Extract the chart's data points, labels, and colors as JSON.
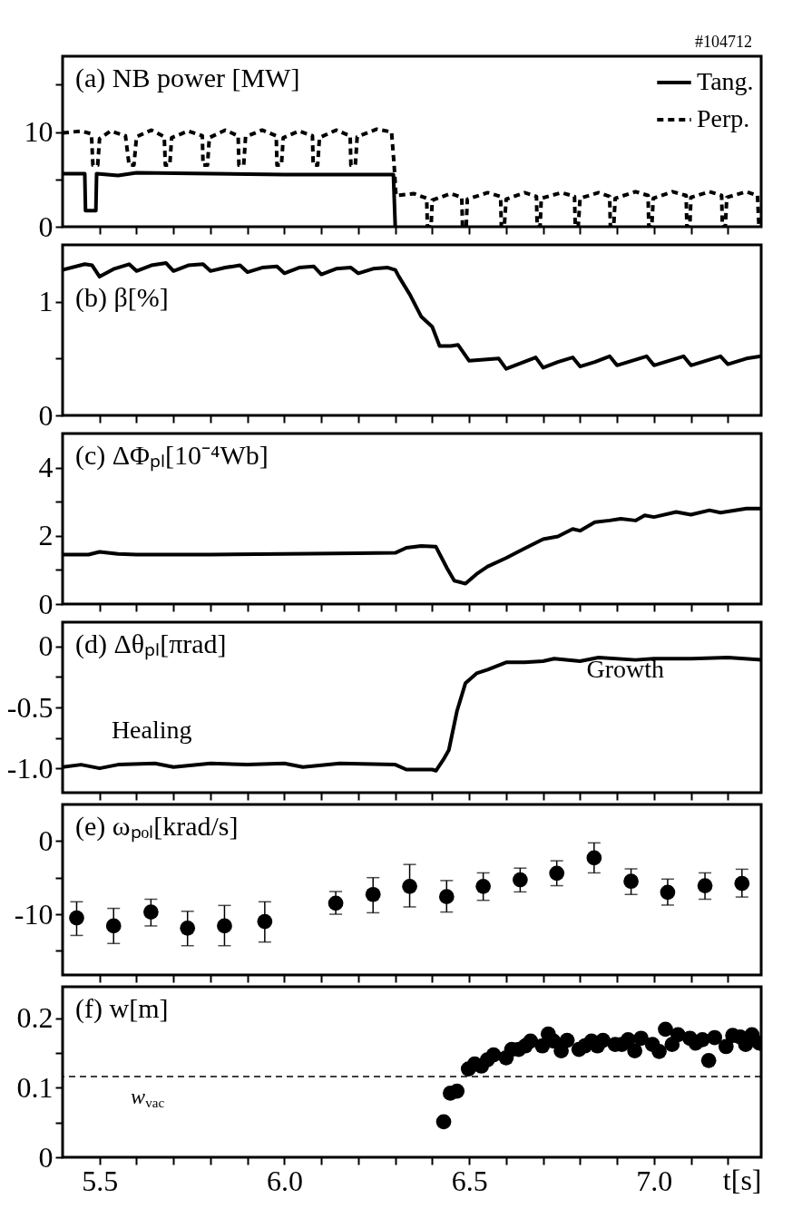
{
  "chart_data": [
    {
      "type": "line",
      "title": "(a) NB power [MW]",
      "annotations": [
        "#104712"
      ],
      "legend": "top right",
      "tick_labels": "y",
      "xlim": [
        5.4,
        7.29
      ],
      "ylim": [
        0,
        18
      ],
      "yticks": [
        0,
        {
          "value": 5,
          "label": null
        },
        10,
        {
          "value": 15,
          "label": null
        }
      ],
      "xticks": [
        {
          "value": 5.5,
          "label": null
        },
        {
          "value": 5.6,
          "label": null
        },
        {
          "value": 5.7,
          "label": null
        },
        {
          "value": 5.8,
          "label": null
        },
        {
          "value": 5.9,
          "label": null
        },
        {
          "value": 6.0,
          "label": null
        },
        {
          "value": 6.1,
          "label": null
        },
        {
          "value": 6.2,
          "label": null
        },
        {
          "value": 6.3,
          "label": null
        },
        {
          "value": 6.4,
          "label": null
        },
        {
          "value": 6.5,
          "label": null
        },
        {
          "value": 6.6,
          "label": null
        },
        {
          "value": 6.7,
          "label": null
        },
        {
          "value": 6.8,
          "label": null
        },
        {
          "value": 6.9,
          "label": null
        },
        {
          "value": 7.0,
          "label": null
        },
        {
          "value": 7.1,
          "label": null
        },
        {
          "value": 7.2,
          "label": null
        }
      ],
      "series": [
        {
          "name": "Tang.",
          "color": "#000000",
          "line_style": "solid",
          "x": [
            5.4,
            5.46,
            5.462,
            5.49,
            5.492,
            5.55,
            5.6,
            6.0,
            6.295,
            6.3
          ],
          "values": [
            5.6,
            5.6,
            1.7,
            1.7,
            5.6,
            5.4,
            5.7,
            5.5,
            5.5,
            0
          ]
        },
        {
          "name": "Perp.",
          "color": "#000000",
          "line_style": "dashed",
          "x": [
            5.4,
            5.45,
            5.478,
            5.482,
            5.495,
            5.5,
            5.53,
            5.57,
            5.58,
            5.593,
            5.6,
            5.64,
            5.675,
            5.678,
            5.69,
            5.695,
            5.74,
            5.778,
            5.78,
            5.792,
            5.797,
            5.84,
            5.875,
            5.877,
            5.89,
            5.895,
            5.94,
            5.978,
            5.98,
            5.992,
            5.997,
            6.04,
            6.076,
            6.078,
            6.09,
            6.095,
            6.14,
            6.178,
            6.18,
            6.192,
            6.197,
            6.25,
            6.29,
            6.297,
            6.302,
            6.35,
            6.385,
            6.387,
            6.397,
            6.4,
            6.45,
            6.48,
            6.482,
            6.492,
            6.495,
            6.55,
            6.585,
            6.587,
            6.595,
            6.6,
            6.65,
            6.682,
            6.684,
            6.692,
            6.695,
            6.75,
            6.785,
            6.787,
            6.795,
            6.8,
            6.85,
            6.88,
            6.882,
            6.891,
            6.895,
            6.95,
            6.984,
            6.986,
            6.994,
            6.998,
            7.05,
            7.087,
            7.089,
            7.097,
            7.1,
            7.15,
            7.183,
            7.185,
            7.193,
            7.197,
            7.25,
            7.28,
            7.284,
            7.29
          ],
          "values": [
            9.9,
            10.1,
            9.8,
            6.5,
            6.5,
            9.3,
            10.1,
            9.6,
            6.5,
            6.5,
            9.5,
            10.2,
            9.5,
            6.5,
            6.5,
            9.4,
            10.1,
            9.6,
            6.5,
            6.5,
            9.4,
            10.2,
            9.6,
            6.5,
            6.5,
            9.5,
            10.2,
            9.6,
            6.5,
            6.5,
            9.4,
            10.1,
            9.6,
            6.5,
            6.5,
            9.4,
            10.2,
            9.6,
            6.5,
            6.5,
            9.5,
            10.3,
            10.0,
            6.5,
            3.3,
            3.5,
            3.0,
            0,
            0,
            2.8,
            3.5,
            3.1,
            0,
            0,
            2.9,
            3.6,
            3.2,
            0,
            0,
            2.9,
            3.6,
            3.2,
            0,
            0,
            3.0,
            3.6,
            3.2,
            0,
            0,
            3.0,
            3.6,
            3.2,
            0,
            0,
            3.0,
            3.7,
            3.3,
            0,
            0,
            3.0,
            3.7,
            3.3,
            0,
            0,
            3.1,
            3.7,
            3.3,
            0,
            0,
            3.1,
            3.7,
            3.3,
            0,
            0
          ]
        }
      ]
    },
    {
      "type": "line",
      "title": "(b) β[%]",
      "tick_labels": "y",
      "xlim": [
        5.4,
        7.29
      ],
      "ylim": [
        0,
        1.5
      ],
      "yticks": [
        0,
        {
          "value": 0.5,
          "label": null
        },
        1
      ],
      "xticks": [
        {
          "value": 5.5,
          "label": null
        },
        {
          "value": 5.6,
          "label": null
        },
        {
          "value": 5.7,
          "label": null
        },
        {
          "value": 5.8,
          "label": null
        },
        {
          "value": 5.9,
          "label": null
        },
        {
          "value": 6.0,
          "label": null
        },
        {
          "value": 6.1,
          "label": null
        },
        {
          "value": 6.2,
          "label": null
        },
        {
          "value": 6.3,
          "label": null
        },
        {
          "value": 6.4,
          "label": null
        },
        {
          "value": 6.5,
          "label": null
        },
        {
          "value": 6.6,
          "label": null
        },
        {
          "value": 6.7,
          "label": null
        },
        {
          "value": 6.8,
          "label": null
        },
        {
          "value": 6.9,
          "label": null
        },
        {
          "value": 7.0,
          "label": null
        },
        {
          "value": 7.1,
          "label": null
        },
        {
          "value": 7.2,
          "label": null
        }
      ],
      "series": [
        {
          "color": "#000000",
          "x": [
            5.4,
            5.46,
            5.48,
            5.5,
            5.54,
            5.58,
            5.6,
            5.64,
            5.68,
            5.7,
            5.74,
            5.78,
            5.8,
            5.84,
            5.88,
            5.9,
            5.94,
            5.98,
            6.0,
            6.04,
            6.08,
            6.1,
            6.14,
            6.18,
            6.2,
            6.24,
            6.28,
            6.3,
            6.31,
            6.34,
            6.37,
            6.4,
            6.42,
            6.45,
            6.47,
            6.5,
            6.54,
            6.58,
            6.6,
            6.64,
            6.68,
            6.7,
            6.74,
            6.78,
            6.8,
            6.84,
            6.88,
            6.9,
            6.94,
            6.98,
            7.0,
            7.04,
            7.08,
            7.1,
            7.14,
            7.18,
            7.2,
            7.25,
            7.29
          ],
          "values": [
            1.28,
            1.33,
            1.32,
            1.22,
            1.29,
            1.33,
            1.27,
            1.32,
            1.34,
            1.27,
            1.32,
            1.33,
            1.27,
            1.3,
            1.32,
            1.26,
            1.3,
            1.31,
            1.25,
            1.3,
            1.31,
            1.24,
            1.29,
            1.3,
            1.25,
            1.29,
            1.3,
            1.28,
            1.22,
            1.06,
            0.87,
            0.78,
            0.61,
            0.61,
            0.62,
            0.48,
            0.49,
            0.5,
            0.41,
            0.46,
            0.51,
            0.42,
            0.47,
            0.51,
            0.43,
            0.47,
            0.52,
            0.44,
            0.48,
            0.52,
            0.44,
            0.48,
            0.52,
            0.44,
            0.48,
            0.52,
            0.45,
            0.5,
            0.52
          ]
        }
      ]
    },
    {
      "type": "line",
      "title": "(c) ΔΦₚₗ[10⁻⁴Wb]",
      "tick_labels": "y",
      "xlim": [
        5.4,
        7.29
      ],
      "ylim": [
        0,
        5
      ],
      "yticks": [
        0,
        {
          "value": 1,
          "label": null
        },
        2,
        {
          "value": 3,
          "label": null
        },
        4
      ],
      "xticks": [
        {
          "value": 5.5,
          "label": null
        },
        {
          "value": 5.6,
          "label": null
        },
        {
          "value": 5.7,
          "label": null
        },
        {
          "value": 5.8,
          "label": null
        },
        {
          "value": 5.9,
          "label": null
        },
        {
          "value": 6.0,
          "label": null
        },
        {
          "value": 6.1,
          "label": null
        },
        {
          "value": 6.2,
          "label": null
        },
        {
          "value": 6.3,
          "label": null
        },
        {
          "value": 6.4,
          "label": null
        },
        {
          "value": 6.5,
          "label": null
        },
        {
          "value": 6.6,
          "label": null
        },
        {
          "value": 6.7,
          "label": null
        },
        {
          "value": 6.8,
          "label": null
        },
        {
          "value": 6.9,
          "label": null
        },
        {
          "value": 7.0,
          "label": null
        },
        {
          "value": 7.1,
          "label": null
        },
        {
          "value": 7.2,
          "label": null
        }
      ],
      "series": [
        {
          "color": "#000000",
          "x": [
            5.4,
            5.47,
            5.5,
            5.55,
            5.6,
            5.8,
            6.0,
            6.2,
            6.3,
            6.33,
            6.37,
            6.41,
            6.44,
            6.46,
            6.49,
            6.52,
            6.55,
            6.6,
            6.645,
            6.7,
            6.74,
            6.78,
            6.8,
            6.84,
            6.88,
            6.91,
            6.95,
            6.975,
            7.0,
            7.06,
            7.1,
            7.15,
            7.18,
            7.25,
            7.29
          ],
          "values": [
            1.45,
            1.45,
            1.53,
            1.47,
            1.45,
            1.45,
            1.47,
            1.49,
            1.5,
            1.65,
            1.7,
            1.68,
            1.05,
            0.68,
            0.6,
            0.88,
            1.1,
            1.35,
            1.6,
            1.9,
            1.98,
            2.2,
            2.15,
            2.4,
            2.45,
            2.5,
            2.45,
            2.6,
            2.55,
            2.7,
            2.62,
            2.75,
            2.68,
            2.8,
            2.8
          ]
        }
      ]
    },
    {
      "type": "line",
      "title": "(d) Δθₚₗ[πrad]",
      "tick_labels": "y",
      "annotations": [
        "Healing",
        "Growth"
      ],
      "xlim": [
        5.4,
        7.29
      ],
      "ylim": [
        -1.2,
        0.2
      ],
      "yticks": [
        {
          "value": 0,
          "label": "0"
        },
        {
          "value": -0.25,
          "label": null
        },
        {
          "value": -0.5,
          "label": "-0.5"
        },
        {
          "value": -0.75,
          "label": null
        },
        {
          "value": -1.0,
          "label": "-1.0"
        }
      ],
      "xticks": [
        {
          "value": 5.5,
          "label": null
        },
        {
          "value": 5.6,
          "label": null
        },
        {
          "value": 5.7,
          "label": null
        },
        {
          "value": 5.8,
          "label": null
        },
        {
          "value": 5.9,
          "label": null
        },
        {
          "value": 6.0,
          "label": null
        },
        {
          "value": 6.1,
          "label": null
        },
        {
          "value": 6.2,
          "label": null
        },
        {
          "value": 6.3,
          "label": null
        },
        {
          "value": 6.4,
          "label": null
        },
        {
          "value": 6.5,
          "label": null
        },
        {
          "value": 6.6,
          "label": null
        },
        {
          "value": 6.7,
          "label": null
        },
        {
          "value": 6.8,
          "label": null
        },
        {
          "value": 6.9,
          "label": null
        },
        {
          "value": 7.0,
          "label": null
        },
        {
          "value": 7.1,
          "label": null
        },
        {
          "value": 7.2,
          "label": null
        }
      ],
      "series": [
        {
          "color": "#000000",
          "x": [
            5.4,
            5.45,
            5.5,
            5.55,
            5.65,
            5.7,
            5.8,
            5.9,
            6.0,
            6.05,
            6.15,
            6.3,
            6.33,
            6.4,
            6.41,
            6.43,
            6.445,
            6.467,
            6.49,
            6.52,
            6.55,
            6.6,
            6.65,
            6.7,
            6.73,
            6.8,
            6.85,
            6.95,
            7.0,
            7.1,
            7.2,
            7.29
          ],
          "values": [
            -0.99,
            -0.97,
            -1.0,
            -0.97,
            -0.96,
            -0.99,
            -0.96,
            -0.97,
            -0.96,
            -0.99,
            -0.96,
            -0.97,
            -1.01,
            -1.01,
            -1.02,
            -0.93,
            -0.85,
            -0.53,
            -0.3,
            -0.22,
            -0.19,
            -0.13,
            -0.13,
            -0.12,
            -0.1,
            -0.12,
            -0.09,
            -0.11,
            -0.1,
            -0.1,
            -0.09,
            -0.11
          ]
        }
      ]
    },
    {
      "type": "scatter",
      "title": "(e) ωₚₒₗ[krad/s]",
      "tick_labels": "y",
      "marker": "circle",
      "xlim": [
        5.4,
        7.29
      ],
      "ylim": [
        -18.3,
        5
      ],
      "yticks": [
        0,
        {
          "value": -5,
          "label": null
        },
        -10,
        {
          "value": -15,
          "label": null
        }
      ],
      "xticks": [
        {
          "value": 5.5,
          "label": null
        },
        {
          "value": 5.6,
          "label": null
        },
        {
          "value": 5.7,
          "label": null
        },
        {
          "value": 5.8,
          "label": null
        },
        {
          "value": 5.9,
          "label": null
        },
        {
          "value": 6.0,
          "label": null
        },
        {
          "value": 6.1,
          "label": null
        },
        {
          "value": 6.2,
          "label": null
        },
        {
          "value": 6.3,
          "label": null
        },
        {
          "value": 6.4,
          "label": null
        },
        {
          "value": 6.5,
          "label": null
        },
        {
          "value": 6.6,
          "label": null
        },
        {
          "value": 6.7,
          "label": null
        },
        {
          "value": 6.8,
          "label": null
        },
        {
          "value": 6.9,
          "label": null
        },
        {
          "value": 7.0,
          "label": null
        },
        {
          "value": 7.1,
          "label": null
        },
        {
          "value": 7.2,
          "label": null
        }
      ],
      "series": [
        {
          "color": "#000000",
          "x": [
            5.438,
            5.538,
            5.639,
            5.738,
            5.838,
            5.947,
            6.139,
            6.24,
            6.339,
            6.439,
            6.538,
            6.638,
            6.737,
            6.838,
            6.938,
            7.037,
            7.138,
            7.238
          ],
          "values": [
            -10.5,
            -11.6,
            -9.7,
            -11.9,
            -11.6,
            -11.0,
            -8.5,
            -7.3,
            -6.2,
            -7.6,
            -6.2,
            -5.3,
            -4.4,
            -2.3,
            -5.5,
            -7.0,
            -6.1,
            -5.8
          ],
          "errors": [
            [
              -12.9,
              -8.3
            ],
            [
              -14.0,
              -9.2
            ],
            [
              -11.6,
              -7.95
            ],
            [
              -14.3,
              -9.6
            ],
            [
              -14.3,
              -8.8
            ],
            [
              -13.8,
              -8.3
            ],
            [
              -10.0,
              -6.9
            ],
            [
              -9.8,
              -5.0
            ],
            [
              -9.0,
              -3.2
            ],
            [
              -9.7,
              -5.4
            ],
            [
              -8.1,
              -4.35
            ],
            [
              -6.95,
              -3.7
            ],
            [
              -6.1,
              -2.7
            ],
            [
              -4.35,
              -0.25
            ],
            [
              -7.3,
              -3.8
            ],
            [
              -8.75,
              -5.2
            ],
            [
              -7.95,
              -4.35
            ],
            [
              -7.65,
              -3.85
            ]
          ]
        }
      ]
    },
    {
      "type": "scatter",
      "title": "(f) w[m]",
      "xlabel": "t[s]",
      "marker": "circle",
      "ref_lines": [
        {
          "axis": "y",
          "value": 0.116,
          "label": "w$_{vac}$",
          "color": "#000000",
          "line_style": "dashed"
        }
      ],
      "xlim": [
        5.4,
        7.29
      ],
      "ylim": [
        0,
        0.245
      ],
      "yticks": [
        0,
        {
          "value": 0.05,
          "label": null
        },
        0.1,
        {
          "value": 0.15,
          "label": null
        },
        0.2
      ],
      "xticks": [
        {
          "value": 5.5,
          "label": "5.5"
        },
        {
          "value": 5.6,
          "label": null
        },
        {
          "value": 5.7,
          "label": null
        },
        {
          "value": 5.8,
          "label": null
        },
        {
          "value": 5.9,
          "label": null
        },
        {
          "value": 6.0,
          "label": "6.0"
        },
        {
          "value": 6.1,
          "label": null
        },
        {
          "value": 6.2,
          "label": null
        },
        {
          "value": 6.3,
          "label": null
        },
        {
          "value": 6.4,
          "label": null
        },
        {
          "value": 6.5,
          "label": "6.5"
        },
        {
          "value": 6.6,
          "label": null
        },
        {
          "value": 6.7,
          "label": null
        },
        {
          "value": 6.8,
          "label": null
        },
        {
          "value": 6.9,
          "label": null
        },
        {
          "value": 7.0,
          "label": "7.0"
        },
        {
          "value": 7.1,
          "label": null
        },
        {
          "value": 7.2,
          "label": null
        }
      ],
      "series": [
        {
          "color": "#000000",
          "x": [
            6.431,
            6.449,
            6.467,
            6.498,
            6.515,
            6.533,
            6.549,
            6.566,
            6.6,
            6.615,
            6.634,
            6.652,
            6.666,
            6.698,
            6.714,
            6.728,
            6.749,
            6.765,
            6.797,
            6.813,
            6.831,
            6.847,
            6.862,
            6.895,
            6.913,
            6.93,
            6.948,
            6.965,
            6.996,
            7.014,
            7.031,
            7.049,
            7.065,
            7.097,
            7.113,
            7.131,
            7.148,
            7.164,
            7.195,
            7.213,
            7.233,
            7.248,
            7.265,
            7.285
          ],
          "values": [
            0.051,
            0.092,
            0.095,
            0.127,
            0.134,
            0.131,
            0.14,
            0.147,
            0.143,
            0.155,
            0.155,
            0.16,
            0.167,
            0.16,
            0.177,
            0.167,
            0.153,
            0.168,
            0.155,
            0.16,
            0.167,
            0.16,
            0.168,
            0.162,
            0.162,
            0.169,
            0.153,
            0.171,
            0.162,
            0.152,
            0.184,
            0.162,
            0.176,
            0.171,
            0.164,
            0.169,
            0.139,
            0.172,
            0.159,
            0.175,
            0.173,
            0.162,
            0.176,
            0.164
          ]
        }
      ]
    }
  ]
}
